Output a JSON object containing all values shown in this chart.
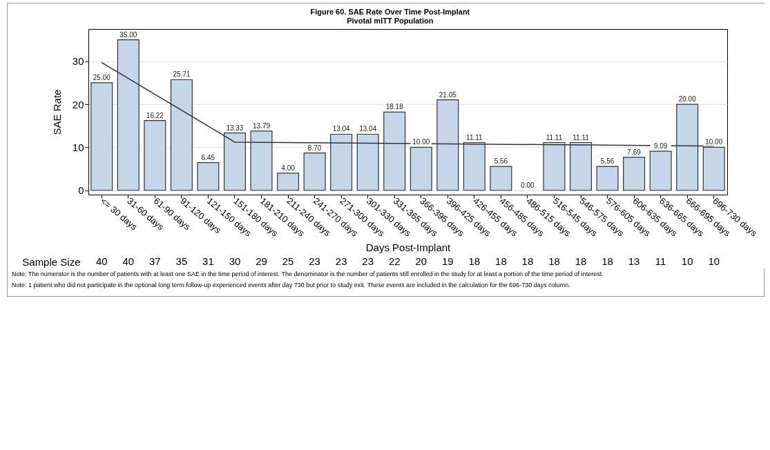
{
  "chart_data": {
    "type": "bar",
    "title": "Figure 60. SAE Rate Over Time Post-Implant",
    "subtitle": "Pivotal mITT Population",
    "xlabel": "Days Post-Implant",
    "ylabel": "SAE Rate",
    "categories": [
      "<= 30 days",
      "31-60 days",
      "61-90 days",
      "91-120 days",
      "121-150 days",
      "151-180 days",
      "181-210 days",
      "211-240 days",
      "241-270 days",
      "271-300 days",
      "301-330 days",
      "331-365 days",
      "366-395 days",
      "396-425 days",
      "426-455 days",
      "456-485 days",
      "486-515 days",
      "516-545 days",
      "546-575 days",
      "576-605 days",
      "606-635 days",
      "636-665 days",
      "666-695 days",
      "696-730 days"
    ],
    "series": [
      {
        "color": "#c6d6ea",
        "values": [
          25.0,
          35.0,
          16.22,
          25.71,
          6.45,
          13.33,
          13.79,
          4.0,
          8.7,
          13.04,
          13.04,
          18.18,
          10.0,
          21.05,
          11.11,
          5.56,
          0.0,
          11.11,
          11.11,
          5.56,
          7.69,
          9.09,
          20.0,
          10.0
        ],
        "value_labels": [
          "25.00",
          "35.00",
          "16.22",
          "25.71",
          "6.45",
          "13.33",
          "13.79",
          "4.00",
          "8.70",
          "13.04",
          "13.04",
          "18.18",
          "10.00",
          "21.05",
          "11.11",
          "5.56",
          "0.00",
          "11.11",
          "11.11",
          "5.56",
          "7.69",
          "9.09",
          "20.00",
          "10.00"
        ]
      },
      {
        "type": "line",
        "color": "#333333",
        "x": [
          "<= 30 days",
          "151-180 days",
          "696-730 days"
        ],
        "values": [
          29.7,
          11.2,
          10.3
        ]
      }
    ],
    "ylim": [
      -1,
      37.5
    ],
    "yticks": [
      0,
      10,
      20,
      30
    ],
    "grid": "y",
    "marker": "none",
    "line_style": "solid",
    "annotations": [
      "Sample Size",
      "40",
      "40",
      "37",
      "35",
      "31",
      "30",
      "29",
      "25",
      "23",
      "23",
      "23",
      "22",
      "20",
      "19",
      "18",
      "18",
      "18",
      "18",
      "18",
      "18",
      "13",
      "11",
      "10",
      "10",
      "Note: The numerator is the number of patients with at least one SAE in the time period of interest. The denominator is the number of patients still enrolled in the study for at least a portion of the time period of interest.",
      "Note: 1 patient who did not participate in the optional long term follow-up experienced events after day 730 but prior to study exit. These events are included in the calculation for the 696-730 days column."
    ]
  }
}
